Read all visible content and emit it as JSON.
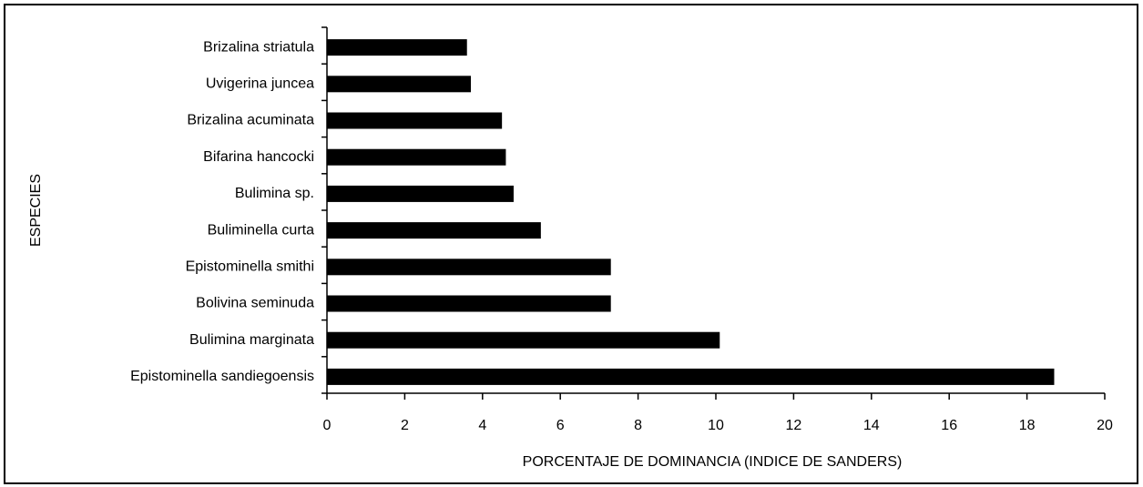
{
  "chart_data": {
    "type": "barh",
    "xlabel": "PORCENTAJE DE DOMINANCIA (INDICE DE SANDERS)",
    "ylabel": "ESPECIES",
    "categories": [
      "Brizalina striatula",
      "Uvigerina juncea",
      "Brizalina acuminata",
      "Bifarina hancocki",
      "Bulimina sp.",
      "Buliminella curta",
      "Epistominella smithi",
      "Bolivina seminuda",
      "Bulimina marginata",
      "Epistominella sandiegoensis"
    ],
    "values": [
      3.6,
      3.7,
      4.5,
      4.6,
      4.8,
      5.5,
      7.3,
      7.3,
      10.1,
      18.7
    ],
    "color": "#000000",
    "xlim": [
      0,
      20
    ],
    "xticks": [
      0,
      2,
      4,
      6,
      8,
      10,
      12,
      14,
      16,
      18,
      20
    ],
    "grid": false
  }
}
